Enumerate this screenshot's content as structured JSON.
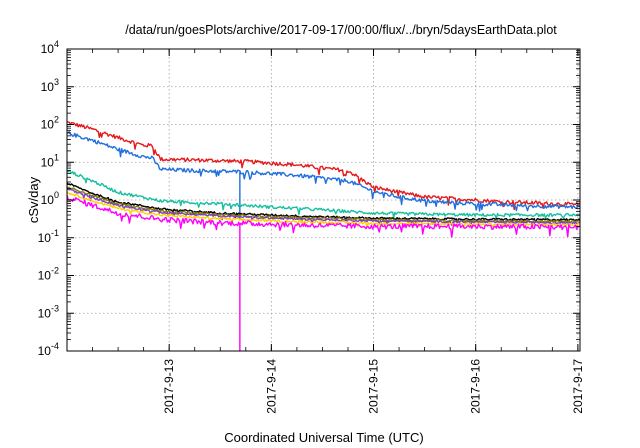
{
  "chart_data": {
    "type": "line",
    "title": "/data/run/goesPlots/archive/2017-09-17/00:00/flux/../bryn/5daysEarthData.plot",
    "xlabel": "Coordinated Universal Time (UTC)",
    "ylabel": "cSv/day",
    "xlim": [
      "2017-09-12 00:00",
      "2017-09-17 00:30"
    ],
    "ylim": [
      0.0001,
      10000
    ],
    "yscale": "log",
    "grid": true,
    "legend": "none",
    "x_ticks": [
      "2017-9-13",
      "2017-9-14",
      "2017-9-15",
      "2017-9-16",
      "2017-9-17"
    ],
    "y_ticks": [
      {
        "value": 0.0001,
        "base": "10",
        "exp": "-4"
      },
      {
        "value": 0.001,
        "base": "10",
        "exp": "-3"
      },
      {
        "value": 0.01,
        "base": "10",
        "exp": "-2"
      },
      {
        "value": 0.1,
        "base": "10",
        "exp": "-1"
      },
      {
        "value": 1,
        "base": "10",
        "exp": "0"
      },
      {
        "value": 10,
        "base": "10",
        "exp": "1"
      },
      {
        "value": 100,
        "base": "10",
        "exp": "2"
      },
      {
        "value": 1000,
        "base": "10",
        "exp": "3"
      },
      {
        "value": 10000,
        "base": "10",
        "exp": "4"
      }
    ],
    "series": [
      {
        "color": "#e41a1c",
        "noise": 0.05,
        "x": [
          "2017-09-12 00:00",
          "2017-09-12 06:00",
          "2017-09-12 12:00",
          "2017-09-12 18:00",
          "2017-09-12 20:00",
          "2017-09-12 22:00",
          "2017-09-13 06:00",
          "2017-09-13 12:00",
          "2017-09-13 18:00",
          "2017-09-14 00:00",
          "2017-09-14 06:00",
          "2017-09-14 12:00",
          "2017-09-14 18:00",
          "2017-09-15 00:00",
          "2017-09-15 06:00",
          "2017-09-15 12:00",
          "2017-09-15 18:00",
          "2017-09-16 00:00",
          "2017-09-16 06:00",
          "2017-09-16 12:00",
          "2017-09-16 18:00",
          "2017-09-17 00:30"
        ],
        "y": [
          115,
          75,
          45,
          28,
          28,
          12,
          11.5,
          11,
          10.5,
          9.5,
          8.5,
          7,
          6,
          2.2,
          1.6,
          1.2,
          1.1,
          1.0,
          0.9,
          0.85,
          0.8,
          0.75
        ]
      },
      {
        "color": "#1f6fde",
        "noise": 0.05,
        "x": [
          "2017-09-12 00:00",
          "2017-09-12 06:00",
          "2017-09-12 12:00",
          "2017-09-12 18:00",
          "2017-09-12 20:00",
          "2017-09-12 22:00",
          "2017-09-13 06:00",
          "2017-09-13 12:00",
          "2017-09-13 18:00",
          "2017-09-14 00:00",
          "2017-09-14 06:00",
          "2017-09-14 12:00",
          "2017-09-14 18:00",
          "2017-09-15 00:00",
          "2017-09-15 06:00",
          "2017-09-15 12:00",
          "2017-09-15 18:00",
          "2017-09-16 00:00",
          "2017-09-16 06:00",
          "2017-09-16 12:00",
          "2017-09-16 18:00",
          "2017-09-17 00:30"
        ],
        "y": [
          60,
          38,
          22,
          14,
          13,
          6.5,
          6,
          5.8,
          5.5,
          5,
          4.5,
          3.8,
          3.2,
          1.7,
          1.2,
          0.95,
          0.85,
          0.8,
          0.75,
          0.7,
          0.68,
          0.65
        ],
        "spike": {
          "x": "2017-09-13 16:30",
          "y": 0.3
        }
      },
      {
        "color": "#17c0a0",
        "noise": 0.04,
        "x": [
          "2017-09-12 00:00",
          "2017-09-12 06:00",
          "2017-09-12 12:00",
          "2017-09-12 22:00",
          "2017-09-13 06:00",
          "2017-09-13 12:00",
          "2017-09-13 18:00",
          "2017-09-14 00:00",
          "2017-09-14 12:00",
          "2017-09-15 00:00",
          "2017-09-15 12:00",
          "2017-09-16 00:00",
          "2017-09-16 12:00",
          "2017-09-17 00:30"
        ],
        "y": [
          6,
          3.2,
          1.6,
          0.95,
          0.85,
          0.8,
          0.72,
          0.65,
          0.55,
          0.45,
          0.42,
          0.4,
          0.4,
          0.4
        ]
      },
      {
        "color": "#000000",
        "noise": 0.025,
        "x": [
          "2017-09-12 00:00",
          "2017-09-12 06:00",
          "2017-09-12 12:00",
          "2017-09-12 22:00",
          "2017-09-13 06:00",
          "2017-09-13 12:00",
          "2017-09-14 00:00",
          "2017-09-14 12:00",
          "2017-09-15 00:00",
          "2017-09-16 00:00",
          "2017-09-17 00:30"
        ],
        "y": [
          2.8,
          1.5,
          0.9,
          0.58,
          0.5,
          0.45,
          0.4,
          0.36,
          0.33,
          0.31,
          0.3
        ]
      },
      {
        "color": "#808000",
        "noise": 0.025,
        "x": [
          "2017-09-12 00:00",
          "2017-09-12 06:00",
          "2017-09-12 12:00",
          "2017-09-12 22:00",
          "2017-09-13 06:00",
          "2017-09-13 12:00",
          "2017-09-14 00:00",
          "2017-09-14 12:00",
          "2017-09-15 00:00",
          "2017-09-16 00:00",
          "2017-09-17 00:30"
        ],
        "y": [
          2.3,
          1.3,
          0.8,
          0.52,
          0.45,
          0.41,
          0.36,
          0.33,
          0.3,
          0.28,
          0.27
        ]
      },
      {
        "color": "#7b3fbf",
        "noise": 0.025,
        "x": [
          "2017-09-12 00:00",
          "2017-09-12 06:00",
          "2017-09-12 12:00",
          "2017-09-12 22:00",
          "2017-09-13 06:00",
          "2017-09-13 12:00",
          "2017-09-14 00:00",
          "2017-09-14 12:00",
          "2017-09-15 00:00",
          "2017-09-16 00:00",
          "2017-09-17 00:30"
        ],
        "y": [
          2.0,
          1.15,
          0.72,
          0.47,
          0.41,
          0.38,
          0.33,
          0.3,
          0.28,
          0.26,
          0.25
        ]
      },
      {
        "color": "#ffd000",
        "noise": 0.03,
        "x": [
          "2017-09-12 00:00",
          "2017-09-12 06:00",
          "2017-09-12 12:00",
          "2017-09-12 22:00",
          "2017-09-13 06:00",
          "2017-09-13 12:00",
          "2017-09-14 00:00",
          "2017-09-14 12:00",
          "2017-09-15 00:00",
          "2017-09-16 00:00",
          "2017-09-17 00:30"
        ],
        "y": [
          1.6,
          0.95,
          0.6,
          0.4,
          0.35,
          0.32,
          0.28,
          0.26,
          0.24,
          0.23,
          0.22
        ]
      },
      {
        "color": "#ff00ff",
        "noise": 0.07,
        "x": [
          "2017-09-12 00:00",
          "2017-09-12 06:00",
          "2017-09-12 12:00",
          "2017-09-12 22:00",
          "2017-09-13 06:00",
          "2017-09-13 12:00",
          "2017-09-14 00:00",
          "2017-09-14 12:00",
          "2017-09-15 00:00",
          "2017-09-16 00:00",
          "2017-09-17 00:30"
        ],
        "y": [
          1.2,
          0.72,
          0.45,
          0.31,
          0.27,
          0.25,
          0.23,
          0.21,
          0.2,
          0.2,
          0.19
        ],
        "spike": {
          "x": "2017-09-13 16:30",
          "y": 0.0001
        }
      }
    ]
  }
}
